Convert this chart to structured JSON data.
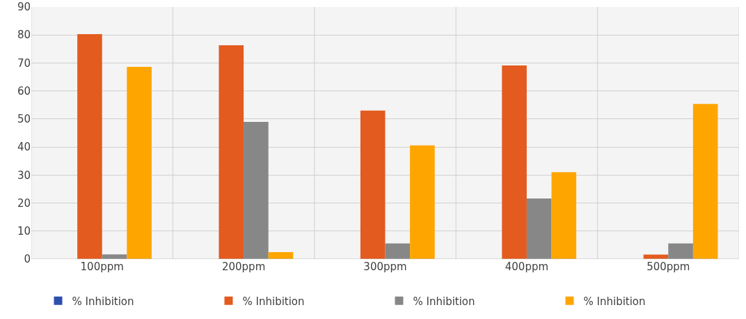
{
  "chart_data": {
    "type": "bar",
    "categories": [
      "100ppm",
      "200ppm",
      "300ppm",
      "400ppm",
      "500ppm"
    ],
    "series": [
      {
        "name": "% Inhibition",
        "color": "#2e4fb0",
        "values": [
          0,
          0,
          0,
          0,
          0
        ]
      },
      {
        "name": "% Inhibition",
        "color": "#e35b1f",
        "values": [
          80.3,
          76.3,
          53,
          69.1,
          1.6
        ]
      },
      {
        "name": "% Inhibition",
        "color": "#878787",
        "values": [
          1.7,
          49,
          5.6,
          21.6,
          5.6
        ]
      },
      {
        "name": "% Inhibition",
        "color": "#ffa500",
        "values": [
          68.6,
          2.5,
          40.6,
          31,
          55.4
        ]
      }
    ],
    "ylim": [
      0,
      90
    ],
    "yticks": [
      0,
      10,
      20,
      30,
      40,
      50,
      60,
      70,
      80,
      90
    ],
    "grid": true,
    "legend": "bottom"
  }
}
